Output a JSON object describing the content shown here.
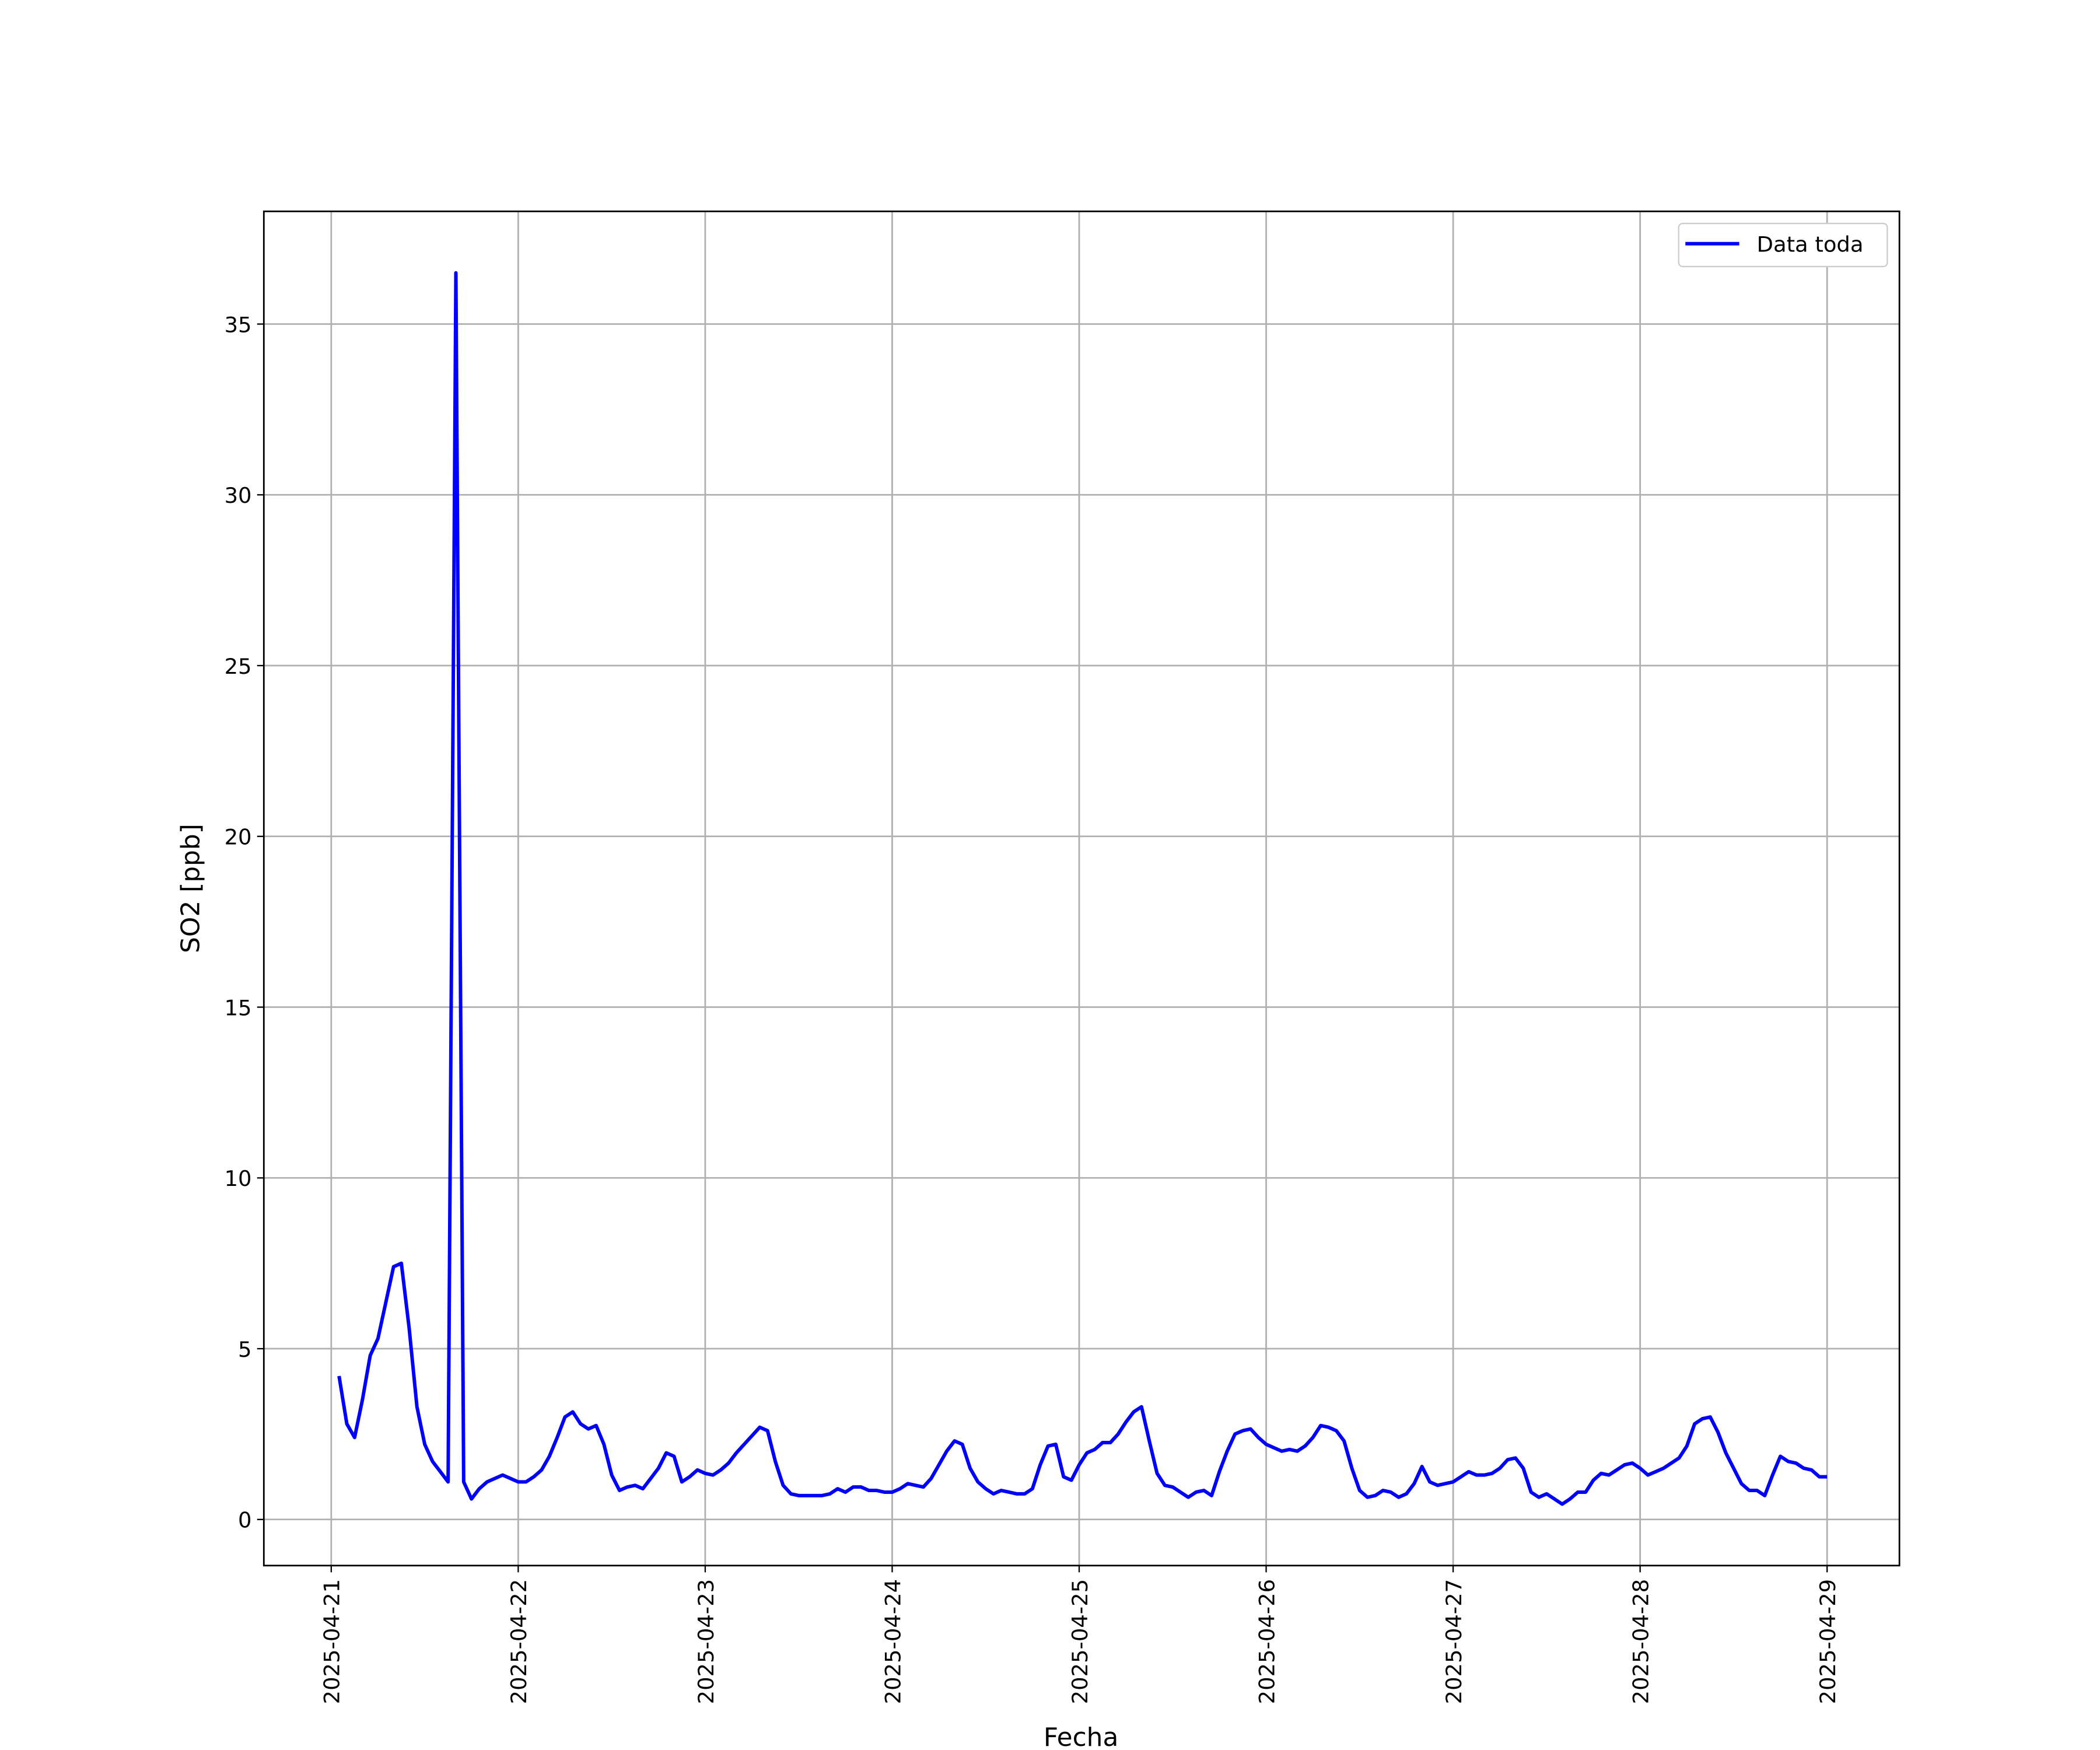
{
  "chart_data": {
    "type": "line",
    "xlabel": "Fecha",
    "ylabel": "SO2 [ppb]",
    "grid": true,
    "legend": "upper right",
    "xlim": [
      "2025-04-20T15:21",
      "2025-04-29T09:17"
    ],
    "xticks": [
      "2025-04-21",
      "2025-04-22",
      "2025-04-23",
      "2025-04-24",
      "2025-04-25",
      "2025-04-26",
      "2025-04-27",
      "2025-04-28",
      "2025-04-29"
    ],
    "ylim": [
      -1.35,
      38.3
    ],
    "yticks": [
      0,
      5,
      10,
      15,
      20,
      25,
      30,
      35
    ],
    "x": [
      "2025-04-21T01:00",
      "2025-04-21T02:00",
      "2025-04-21T03:00",
      "2025-04-21T04:00",
      "2025-04-21T05:00",
      "2025-04-21T06:00",
      "2025-04-21T07:00",
      "2025-04-21T08:00",
      "2025-04-21T09:00",
      "2025-04-21T10:00",
      "2025-04-21T11:00",
      "2025-04-21T12:00",
      "2025-04-21T13:00",
      "2025-04-21T14:00",
      "2025-04-21T15:00",
      "2025-04-21T16:00",
      "2025-04-21T17:00",
      "2025-04-21T18:00",
      "2025-04-21T19:00",
      "2025-04-21T20:00",
      "2025-04-21T21:00",
      "2025-04-21T22:00",
      "2025-04-21T23:00",
      "2025-04-22T00:00",
      "2025-04-22T01:00",
      "2025-04-22T02:00",
      "2025-04-22T03:00",
      "2025-04-22T04:00",
      "2025-04-22T05:00",
      "2025-04-22T06:00",
      "2025-04-22T07:00",
      "2025-04-22T08:00",
      "2025-04-22T09:00",
      "2025-04-22T10:00",
      "2025-04-22T11:00",
      "2025-04-22T12:00",
      "2025-04-22T13:00",
      "2025-04-22T14:00",
      "2025-04-22T15:00",
      "2025-04-22T16:00",
      "2025-04-22T17:00",
      "2025-04-22T18:00",
      "2025-04-22T19:00",
      "2025-04-22T20:00",
      "2025-04-22T21:00",
      "2025-04-22T22:00",
      "2025-04-22T23:00",
      "2025-04-23T00:00",
      "2025-04-23T01:00",
      "2025-04-23T02:00",
      "2025-04-23T03:00",
      "2025-04-23T04:00",
      "2025-04-23T05:00",
      "2025-04-23T06:00",
      "2025-04-23T07:00",
      "2025-04-23T08:00",
      "2025-04-23T09:00",
      "2025-04-23T10:00",
      "2025-04-23T11:00",
      "2025-04-23T12:00",
      "2025-04-23T13:00",
      "2025-04-23T14:00",
      "2025-04-23T15:00",
      "2025-04-23T16:00",
      "2025-04-23T17:00",
      "2025-04-23T18:00",
      "2025-04-23T19:00",
      "2025-04-23T20:00",
      "2025-04-23T21:00",
      "2025-04-23T22:00",
      "2025-04-23T23:00",
      "2025-04-24T00:00",
      "2025-04-24T01:00",
      "2025-04-24T02:00",
      "2025-04-24T03:00",
      "2025-04-24T04:00",
      "2025-04-24T05:00",
      "2025-04-24T06:00",
      "2025-04-24T07:00",
      "2025-04-24T08:00",
      "2025-04-24T09:00",
      "2025-04-24T10:00",
      "2025-04-24T11:00",
      "2025-04-24T12:00",
      "2025-04-24T13:00",
      "2025-04-24T14:00",
      "2025-04-24T15:00",
      "2025-04-24T16:00",
      "2025-04-24T17:00",
      "2025-04-24T18:00",
      "2025-04-24T19:00",
      "2025-04-24T20:00",
      "2025-04-24T21:00",
      "2025-04-24T22:00",
      "2025-04-24T23:00",
      "2025-04-25T00:00",
      "2025-04-25T01:00",
      "2025-04-25T02:00",
      "2025-04-25T03:00",
      "2025-04-25T04:00",
      "2025-04-25T05:00",
      "2025-04-25T06:00",
      "2025-04-25T07:00",
      "2025-04-25T08:00",
      "2025-04-25T09:00",
      "2025-04-25T10:00",
      "2025-04-25T11:00",
      "2025-04-25T12:00",
      "2025-04-25T13:00",
      "2025-04-25T14:00",
      "2025-04-25T15:00",
      "2025-04-25T16:00",
      "2025-04-25T17:00",
      "2025-04-25T18:00",
      "2025-04-25T19:00",
      "2025-04-25T20:00",
      "2025-04-25T21:00",
      "2025-04-25T22:00",
      "2025-04-25T23:00",
      "2025-04-26T00:00",
      "2025-04-26T01:00",
      "2025-04-26T02:00",
      "2025-04-26T03:00",
      "2025-04-26T04:00",
      "2025-04-26T05:00",
      "2025-04-26T06:00",
      "2025-04-26T07:00",
      "2025-04-26T08:00",
      "2025-04-26T09:00",
      "2025-04-26T10:00",
      "2025-04-26T11:00",
      "2025-04-26T12:00",
      "2025-04-26T13:00",
      "2025-04-26T14:00",
      "2025-04-26T15:00",
      "2025-04-26T16:00",
      "2025-04-26T17:00",
      "2025-04-26T18:00",
      "2025-04-26T19:00",
      "2025-04-26T20:00",
      "2025-04-26T21:00",
      "2025-04-26T22:00",
      "2025-04-26T23:00",
      "2025-04-27T00:00",
      "2025-04-27T01:00",
      "2025-04-27T02:00",
      "2025-04-27T03:00",
      "2025-04-27T04:00",
      "2025-04-27T05:00",
      "2025-04-27T06:00",
      "2025-04-27T07:00",
      "2025-04-27T08:00",
      "2025-04-27T09:00",
      "2025-04-27T10:00",
      "2025-04-27T11:00",
      "2025-04-27T12:00",
      "2025-04-27T13:00",
      "2025-04-27T14:00",
      "2025-04-27T15:00",
      "2025-04-27T16:00",
      "2025-04-27T17:00",
      "2025-04-27T18:00",
      "2025-04-27T19:00",
      "2025-04-27T20:00",
      "2025-04-27T21:00",
      "2025-04-27T22:00",
      "2025-04-27T23:00",
      "2025-04-28T00:00",
      "2025-04-28T01:00",
      "2025-04-28T02:00",
      "2025-04-28T03:00",
      "2025-04-28T04:00",
      "2025-04-28T05:00",
      "2025-04-28T06:00",
      "2025-04-28T07:00",
      "2025-04-28T08:00",
      "2025-04-28T09:00",
      "2025-04-28T10:00",
      "2025-04-28T11:00",
      "2025-04-28T12:00",
      "2025-04-28T13:00",
      "2025-04-28T14:00",
      "2025-04-28T15:00",
      "2025-04-28T16:00",
      "2025-04-28T17:00",
      "2025-04-28T18:00",
      "2025-04-28T19:00",
      "2025-04-28T20:00",
      "2025-04-28T21:00",
      "2025-04-28T22:00",
      "2025-04-28T23:00",
      "2025-04-29T00:00"
    ],
    "series": [
      {
        "name": "Data toda",
        "color": "#0000ff",
        "values": [
          4.2,
          2.8,
          2.4,
          3.5,
          4.8,
          5.3,
          6.35,
          7.4,
          7.5,
          5.6,
          3.3,
          2.2,
          1.7,
          1.4,
          1.1,
          36.5,
          1.1,
          0.6,
          0.9,
          1.1,
          1.2,
          1.3,
          1.2,
          1.1,
          1.1,
          1.25,
          1.45,
          1.85,
          2.4,
          3.0,
          3.15,
          2.8,
          2.65,
          2.75,
          2.2,
          1.3,
          0.85,
          0.95,
          1.0,
          0.9,
          1.2,
          1.5,
          1.95,
          1.85,
          1.1,
          1.25,
          1.45,
          1.35,
          1.3,
          1.45,
          1.65,
          1.95,
          2.2,
          2.45,
          2.7,
          2.6,
          1.7,
          1.0,
          0.75,
          0.7,
          0.7,
          0.7,
          0.7,
          0.75,
          0.9,
          0.8,
          0.95,
          0.95,
          0.85,
          0.85,
          0.8,
          0.8,
          0.9,
          1.05,
          1.0,
          0.95,
          1.2,
          1.6,
          2.0,
          2.3,
          2.2,
          1.5,
          1.1,
          0.9,
          0.75,
          0.85,
          0.8,
          0.75,
          0.75,
          0.9,
          1.6,
          2.15,
          2.2,
          1.25,
          1.15,
          1.6,
          1.95,
          2.05,
          2.25,
          2.25,
          2.5,
          2.85,
          3.15,
          3.3,
          2.3,
          1.35,
          1.0,
          0.95,
          0.8,
          0.65,
          0.8,
          0.85,
          0.7,
          1.4,
          2.0,
          2.5,
          2.6,
          2.65,
          2.4,
          2.2,
          2.1,
          2.0,
          2.05,
          2.0,
          2.15,
          2.4,
          2.75,
          2.7,
          2.6,
          2.3,
          1.5,
          0.85,
          0.65,
          0.7,
          0.85,
          0.8,
          0.65,
          0.75,
          1.05,
          1.55,
          1.1,
          1.0,
          1.05,
          1.1,
          1.25,
          1.4,
          1.3,
          1.3,
          1.35,
          1.5,
          1.75,
          1.8,
          1.5,
          0.8,
          0.65,
          0.75,
          0.6,
          0.45,
          0.6,
          0.8,
          0.8,
          1.15,
          1.35,
          1.3,
          1.45,
          1.6,
          1.65,
          1.5,
          1.3,
          1.4,
          1.5,
          1.65,
          1.8,
          2.15,
          2.8,
          2.95,
          3.0,
          2.55,
          1.95,
          1.5,
          1.05,
          0.85,
          0.85,
          0.7,
          1.3,
          1.85,
          1.7,
          1.65,
          1.5,
          1.45,
          1.25,
          1.25
        ]
      }
    ]
  }
}
